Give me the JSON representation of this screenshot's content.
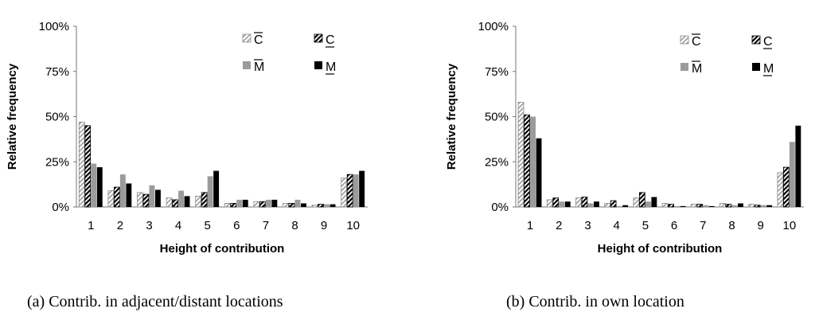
{
  "chart_data": [
    {
      "type": "bar",
      "caption": "(a) Contrib. in adjacent/distant locations",
      "xlabel": "Height of contribution",
      "ylabel": "Relative frequency",
      "categories": [
        "1",
        "2",
        "3",
        "4",
        "5",
        "6",
        "7",
        "8",
        "9",
        "10"
      ],
      "y_ticks": [
        "0%",
        "25%",
        "50%",
        "75%",
        "100%"
      ],
      "ylim": [
        0,
        100
      ],
      "legend_position": "top-right",
      "series": [
        {
          "name": "C",
          "label_mark": "overline",
          "pattern": "hatch-light",
          "values": [
            47,
            9,
            8,
            5,
            6,
            2,
            3,
            2,
            1,
            16
          ]
        },
        {
          "name": "C",
          "label_mark": "underline",
          "pattern": "hatch-dark",
          "values": [
            45,
            11,
            7,
            4,
            8,
            2,
            3,
            2,
            1.5,
            18
          ]
        },
        {
          "name": "M",
          "label_mark": "overline",
          "pattern": "solid-gray",
          "values": [
            24,
            18,
            12,
            9,
            17,
            4,
            4,
            4,
            1.5,
            18
          ]
        },
        {
          "name": "M",
          "label_mark": "underline",
          "pattern": "solid-black",
          "values": [
            22,
            13,
            9.5,
            6,
            20,
            4,
            4,
            2,
            1.5,
            20
          ]
        }
      ]
    },
    {
      "type": "bar",
      "caption": "(b) Contrib. in own location",
      "xlabel": "Height of contribution",
      "ylabel": "Relative frequency",
      "categories": [
        "1",
        "2",
        "3",
        "4",
        "5",
        "6",
        "7",
        "8",
        "9",
        "10"
      ],
      "y_ticks": [
        "0%",
        "25%",
        "50%",
        "75%",
        "100%"
      ],
      "ylim": [
        0,
        100
      ],
      "legend_position": "top-right",
      "series": [
        {
          "name": "C",
          "label_mark": "overline",
          "pattern": "hatch-light",
          "values": [
            58,
            4,
            5,
            2,
            5,
            2,
            1.5,
            2,
            1.5,
            19
          ]
        },
        {
          "name": "C",
          "label_mark": "underline",
          "pattern": "hatch-dark",
          "values": [
            51,
            5,
            5.5,
            3.5,
            8,
            1.5,
            1.5,
            1.5,
            1,
            22
          ]
        },
        {
          "name": "M",
          "label_mark": "overline",
          "pattern": "solid-gray",
          "values": [
            50,
            3,
            2,
            0.5,
            3,
            0.5,
            1,
            1,
            1,
            36
          ]
        },
        {
          "name": "M",
          "label_mark": "underline",
          "pattern": "solid-black",
          "values": [
            38,
            3,
            3,
            1,
            5.5,
            0.5,
            0.5,
            2,
            1,
            45
          ]
        }
      ]
    }
  ]
}
